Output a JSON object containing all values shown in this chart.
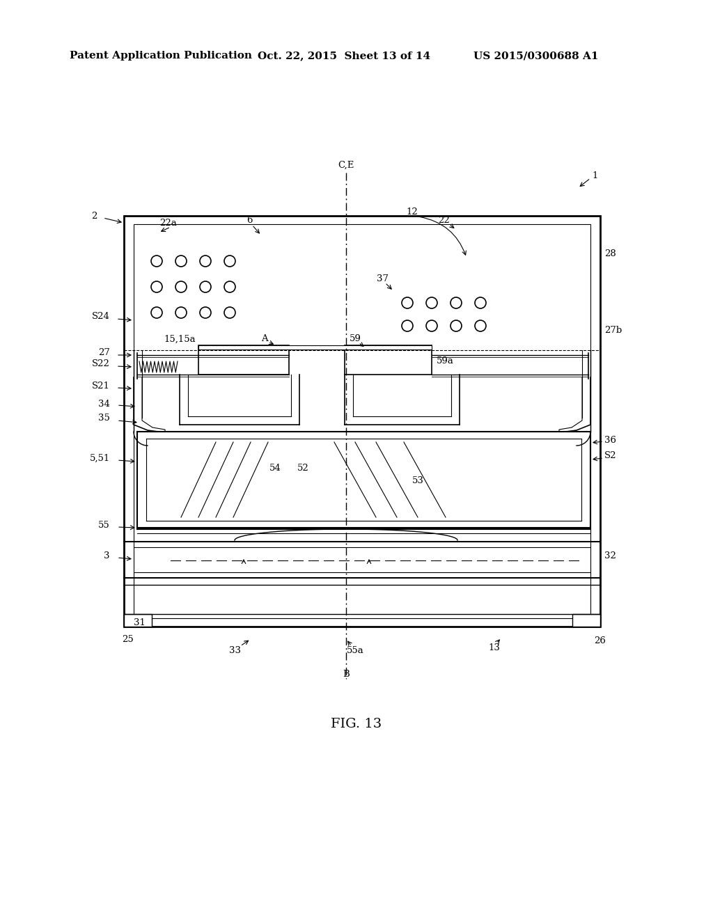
{
  "bg_color": "#ffffff",
  "header_left": "Patent Application Publication",
  "header_mid": "Oct. 22, 2015  Sheet 13 of 14",
  "header_right": "US 2015/0300688 A1",
  "fig_label": "FIG. 13",
  "title_fontsize": 11,
  "label_fontsize": 9.5
}
